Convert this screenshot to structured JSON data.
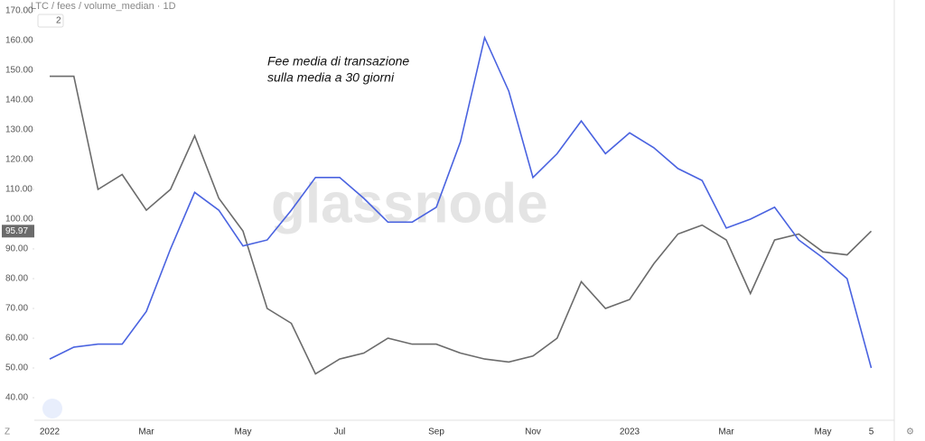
{
  "chart_data": {
    "type": "line",
    "title": "LTC / fees / volume_median · 1D",
    "badge": "2",
    "annotations": [
      "Fee media di transazione",
      "sulla media a 30 giorni"
    ],
    "watermark": "glassnode",
    "categories": [
      "2022",
      null,
      null,
      null,
      "Mar",
      null,
      null,
      null,
      "May",
      null,
      null,
      null,
      "Jul",
      null,
      null,
      null,
      "Sep",
      null,
      null,
      null,
      "Nov",
      null,
      null,
      null,
      "2023",
      null,
      null,
      null,
      "Mar",
      null,
      null,
      null,
      "May",
      null,
      "5"
    ],
    "series": [
      {
        "color": "#6b6b6b",
        "values": [
          148,
          148,
          110,
          115,
          103,
          110,
          128,
          107,
          96,
          70,
          65,
          48,
          53,
          55,
          60,
          58,
          58,
          55,
          53,
          52,
          54,
          60,
          79,
          70,
          73,
          85,
          95,
          98,
          93,
          75,
          93,
          95,
          89,
          88,
          95.97
        ]
      },
      {
        "color": "#4a63e0",
        "values": [
          53,
          57,
          58,
          58,
          69,
          90,
          109,
          103,
          91,
          93,
          103,
          114,
          114,
          107,
          99,
          99,
          104,
          126,
          161,
          143,
          114,
          122,
          133,
          122,
          129,
          124,
          117,
          113,
          97,
          100,
          104,
          93,
          87,
          80,
          50
        ]
      }
    ],
    "last_value": 95.97,
    "ylim": [
      40,
      170
    ],
    "yticks": [
      {
        "value": 40,
        "label": "40.00"
      },
      {
        "value": 50,
        "label": "50.00"
      },
      {
        "value": 60,
        "label": "60.00"
      },
      {
        "value": 70,
        "label": "70.00"
      },
      {
        "value": 80,
        "label": "80.00"
      },
      {
        "value": 90,
        "label": "90.00"
      },
      {
        "value": 100,
        "label": "100.00"
      },
      {
        "value": 110,
        "label": "110.00"
      },
      {
        "value": 120,
        "label": "120.00"
      },
      {
        "value": 130,
        "label": "130.00"
      },
      {
        "value": 140,
        "label": "140.00"
      },
      {
        "value": 150,
        "label": "150.00"
      },
      {
        "value": 160,
        "label": "160.00"
      },
      {
        "value": 170,
        "label": "170.00"
      }
    ],
    "grid": false
  }
}
